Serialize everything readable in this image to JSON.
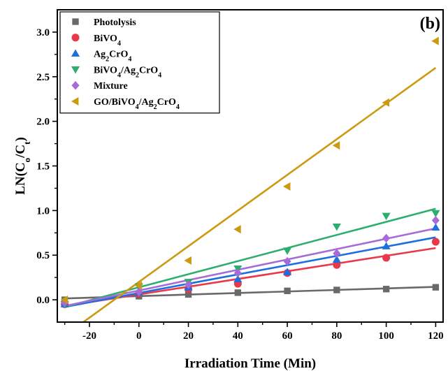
{
  "chart_data": {
    "type": "scatter",
    "panel_label": "(b)",
    "xlabel": "Irradiation Time (Min)",
    "ylabel": "LN(C0/Ct)",
    "ylabel_parts": {
      "base": "LN(C",
      "sub1": "o",
      "mid": "/C",
      "sub2": "t",
      "end": ")"
    },
    "xlim": [
      -33,
      123
    ],
    "ylim": [
      -0.25,
      3.25
    ],
    "xticks": [
      -20,
      0,
      20,
      40,
      60,
      80,
      100,
      120
    ],
    "xtick_labels": [
      "-20",
      "0",
      "20",
      "40",
      "60",
      "80",
      "100",
      "120"
    ],
    "yticks": [
      0.0,
      0.5,
      1.0,
      1.5,
      2.0,
      2.5,
      3.0
    ],
    "ytick_labels": [
      "0.0",
      "0.5",
      "1.0",
      "1.5",
      "2.0",
      "2.5",
      "3.0"
    ],
    "legend_position": "top-left",
    "x": [
      -30,
      0,
      20,
      40,
      60,
      80,
      100,
      120
    ],
    "series": [
      {
        "name": "Photolysis",
        "label_parts": [
          {
            "t": "Photolysis"
          }
        ],
        "marker": "square",
        "color": "#696969",
        "values": [
          0.0,
          0.04,
          0.06,
          0.08,
          0.1,
          0.11,
          0.12,
          0.14
        ],
        "fit": [
          [
            -30,
            0.015
          ],
          [
            120,
            0.145
          ]
        ]
      },
      {
        "name": "BiVO4",
        "label_parts": [
          {
            "t": "BiVO"
          },
          {
            "t": "4",
            "sub": true
          }
        ],
        "marker": "circle",
        "color": "#e8394b",
        "values": [
          -0.05,
          0.07,
          0.12,
          0.18,
          0.3,
          0.39,
          0.47,
          0.65
        ],
        "fit": [
          [
            -30,
            -0.07
          ],
          [
            120,
            0.58
          ]
        ]
      },
      {
        "name": "Ag2CrO4",
        "label_parts": [
          {
            "t": "Ag"
          },
          {
            "t": "2",
            "sub": true
          },
          {
            "t": "CrO"
          },
          {
            "t": "4",
            "sub": true
          }
        ],
        "marker": "triangle-up",
        "color": "#1d6fe0",
        "values": [
          -0.05,
          0.08,
          0.14,
          0.23,
          0.31,
          0.45,
          0.6,
          0.81
        ],
        "fit": [
          [
            -30,
            -0.08
          ],
          [
            120,
            0.7
          ]
        ]
      },
      {
        "name": "BiVO4/Ag2CrO4",
        "label_parts": [
          {
            "t": "BiVO"
          },
          {
            "t": "4",
            "sub": true
          },
          {
            "t": "/Ag"
          },
          {
            "t": "2",
            "sub": true
          },
          {
            "t": "CrO"
          },
          {
            "t": "4",
            "sub": true
          }
        ],
        "marker": "triangle-down",
        "color": "#2dae6e",
        "values": [
          -0.05,
          0.15,
          0.2,
          0.35,
          0.55,
          0.82,
          0.94,
          0.97
        ],
        "fit": [
          [
            -30,
            -0.08
          ],
          [
            120,
            1.02
          ]
        ]
      },
      {
        "name": "Mixture",
        "label_parts": [
          {
            "t": "Mixture"
          }
        ],
        "marker": "diamond",
        "color": "#a76bd8",
        "values": [
          -0.03,
          0.09,
          0.17,
          0.3,
          0.43,
          0.52,
          0.69,
          0.89
        ],
        "fit": [
          [
            -30,
            -0.07
          ],
          [
            120,
            0.8
          ]
        ]
      },
      {
        "name": "GO/BiVO4/Ag2CrO4",
        "label_parts": [
          {
            "t": "GO/BiVO"
          },
          {
            "t": "4",
            "sub": true
          },
          {
            "t": "/Ag"
          },
          {
            "t": "2",
            "sub": true
          },
          {
            "t": "CrO"
          },
          {
            "t": "4",
            "sub": true
          }
        ],
        "marker": "triangle-left",
        "color": "#cc9a10",
        "values": [
          0.0,
          0.16,
          0.44,
          0.79,
          1.27,
          1.73,
          2.21,
          2.9
        ],
        "fit": [
          [
            -30,
            -0.4
          ],
          [
            120,
            2.6
          ]
        ]
      }
    ]
  }
}
